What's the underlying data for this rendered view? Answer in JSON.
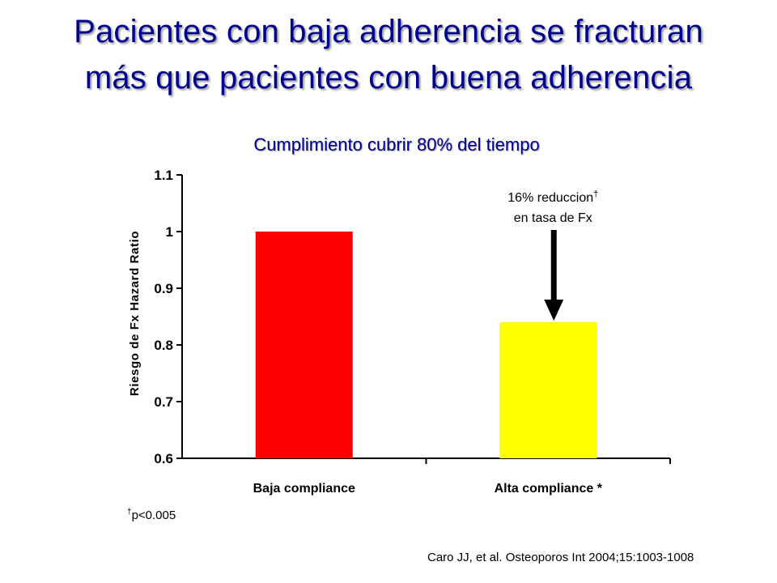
{
  "slide": {
    "title_line1": "Pacientes con baja adherencia se fracturan",
    "title_line2": "más que pacientes con buena adherencia",
    "footnote_mark": "†",
    "footnote_text": "p<0.005",
    "citation": "Caro JJ, et al. Osteoporos Int 2004;15:1003-1008"
  },
  "chart_data": {
    "type": "bar",
    "title": "Cumplimiento cubrir 80% del tiempo",
    "ylabel": "Riesgo de Fx Hazard Ratio",
    "xlabel": "",
    "categories": [
      "Baja compliance",
      "Alta compliance *"
    ],
    "values": [
      1.0,
      0.84
    ],
    "colors": [
      "#ff0000",
      "#ffff00"
    ],
    "ylim": [
      0.6,
      1.1
    ],
    "yticks": [
      0.6,
      0.7,
      0.8,
      0.9,
      1.0,
      1.1
    ],
    "ytick_labels": [
      "0.6",
      "0.7",
      "0.8",
      "0.9",
      "1",
      "1.1"
    ],
    "grid": false,
    "annotation": {
      "line1": "16% reduccion",
      "mark": "†",
      "line2": "en tasa de Fx",
      "target_category": "Alta compliance *"
    }
  }
}
